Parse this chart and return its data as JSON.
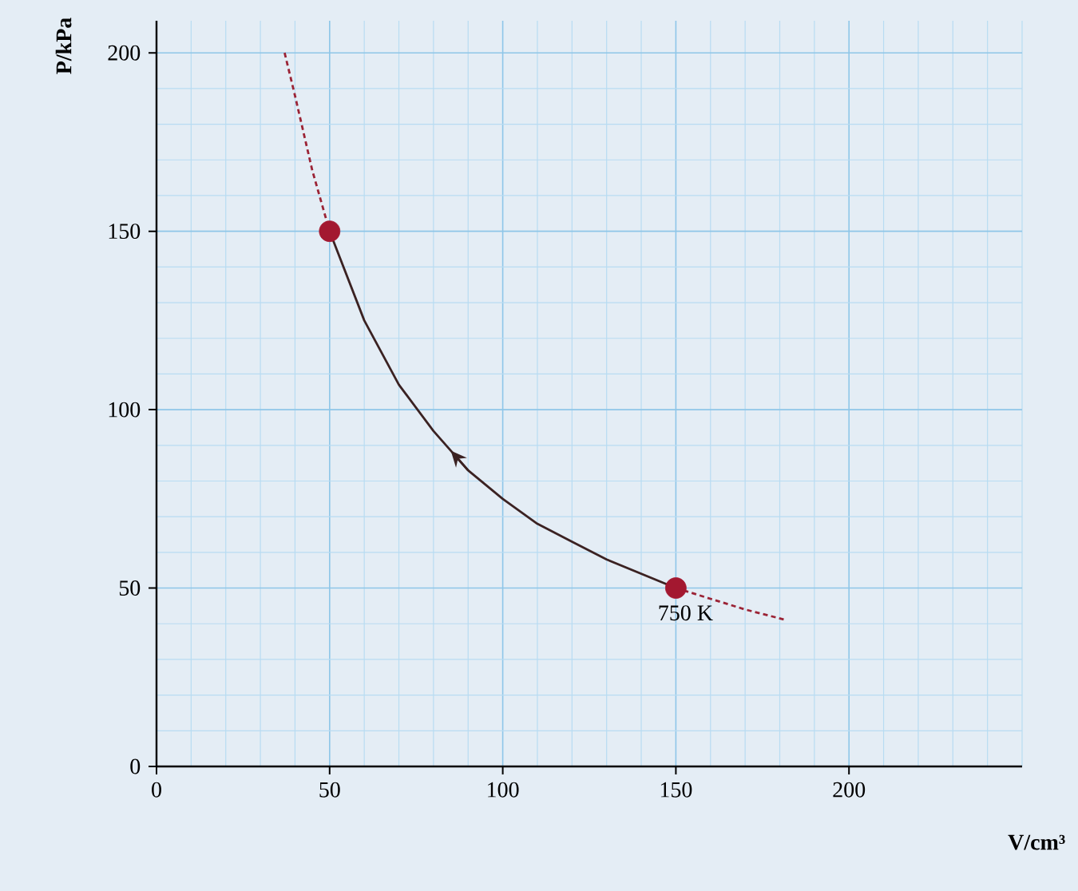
{
  "chart_data": {
    "type": "line",
    "xlabel": "V/cm³",
    "ylabel": "P/kPa",
    "xlim": [
      0,
      250
    ],
    "ylim": [
      0,
      209
    ],
    "xticks": [
      0,
      {
        "value": 10,
        "label": null
      },
      {
        "value": 20,
        "label": null
      },
      {
        "value": 30,
        "label": null
      },
      {
        "value": 40,
        "label": null
      },
      50,
      {
        "value": 60,
        "label": null
      },
      {
        "value": 70,
        "label": null
      },
      {
        "value": 80,
        "label": null
      },
      {
        "value": 90,
        "label": null
      },
      100,
      {
        "value": 110,
        "label": null
      },
      {
        "value": 120,
        "label": null
      },
      {
        "value": 130,
        "label": null
      },
      {
        "value": 140,
        "label": null
      },
      150,
      {
        "value": 160,
        "label": null
      },
      {
        "value": 170,
        "label": null
      },
      {
        "value": 180,
        "label": null
      },
      {
        "value": 190,
        "label": null
      },
      200,
      {
        "value": 210,
        "label": null
      },
      {
        "value": 220,
        "label": null
      },
      {
        "value": 230,
        "label": null
      },
      {
        "value": 240,
        "label": null
      },
      {
        "value": 250,
        "label": null
      }
    ],
    "yticks": [
      0,
      {
        "value": 10,
        "label": null
      },
      {
        "value": 20,
        "label": null
      },
      {
        "value": 30,
        "label": null
      },
      {
        "value": 40,
        "label": null
      },
      50,
      {
        "value": 60,
        "label": null
      },
      {
        "value": 70,
        "label": null
      },
      {
        "value": 80,
        "label": null
      },
      {
        "value": 90,
        "label": null
      },
      100,
      {
        "value": 110,
        "label": null
      },
      {
        "value": 120,
        "label": null
      },
      {
        "value": 130,
        "label": null
      },
      {
        "value": 140,
        "label": null
      },
      150,
      {
        "value": 160,
        "label": null
      },
      {
        "value": 170,
        "label": null
      },
      {
        "value": 180,
        "label": null
      },
      {
        "value": 190,
        "label": null
      },
      200
    ],
    "grid": true,
    "annotations": [
      {
        "text": "750 K",
        "x": 150,
        "y": 50
      }
    ],
    "series": [
      {
        "color": "#9b2335",
        "line_style": "dashed",
        "x": [
          37,
          40,
          45,
          50
        ],
        "values": [
          200,
          188,
          167,
          150
        ]
      },
      {
        "color": "#3b2222",
        "line_style": "solid",
        "x": [
          150,
          140,
          130,
          120,
          110,
          100,
          90,
          80,
          70,
          60,
          50
        ],
        "values": [
          50,
          54,
          58,
          63,
          68,
          75,
          83,
          94,
          107,
          125,
          150
        ]
      },
      {
        "color": "#9b2335",
        "line_style": "dashed",
        "x": [
          150,
          160,
          170,
          182
        ],
        "values": [
          50,
          47,
          44,
          41
        ]
      },
      {
        "type": "scatter",
        "color": "#a31830",
        "x": [
          50,
          150
        ],
        "values": [
          150,
          50
        ]
      }
    ]
  }
}
